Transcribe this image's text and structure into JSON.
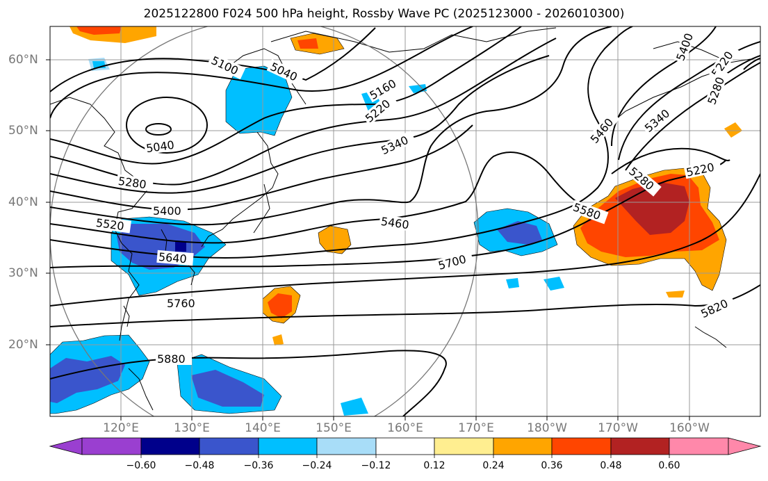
{
  "title": "2025122800 F024 500 hPa height, Rossby Wave PC (2025123000 - 2026010300)",
  "lat_labels": [
    "60°N",
    "50°N",
    "40°N",
    "30°N",
    "20°N"
  ],
  "lon_labels": [
    "120°E",
    "130°E",
    "140°E",
    "150°E",
    "160°E",
    "170°E",
    "180°W",
    "170°W",
    "160°W"
  ],
  "contour_labels": [
    "5100",
    "5040",
    "5040",
    "5160",
    "5220",
    "5340",
    "5280",
    "5400",
    "5520",
    "5640",
    "5460",
    "5700",
    "5760",
    "5880",
    "5580",
    "5460",
    "5340",
    "5220",
    "5280",
    "5400",
    "5220",
    "5280",
    "5820"
  ],
  "colorbar": {
    "ticks": [
      "−0.60",
      "−0.48",
      "−0.36",
      "−0.24",
      "−0.12",
      "0.12",
      "0.24",
      "0.36",
      "0.48",
      "0.60"
    ],
    "colors": [
      "#9a3fd0",
      "#00008b",
      "#3a55cc",
      "#00bfff",
      "#a8ddf8",
      "#ffffff",
      "#ffee90",
      "#ffa500",
      "#ff4500",
      "#b22222",
      "#ff88aa"
    ]
  },
  "colors": {
    "grid": "#999999",
    "contour": "#000000",
    "circle": "#777777"
  }
}
